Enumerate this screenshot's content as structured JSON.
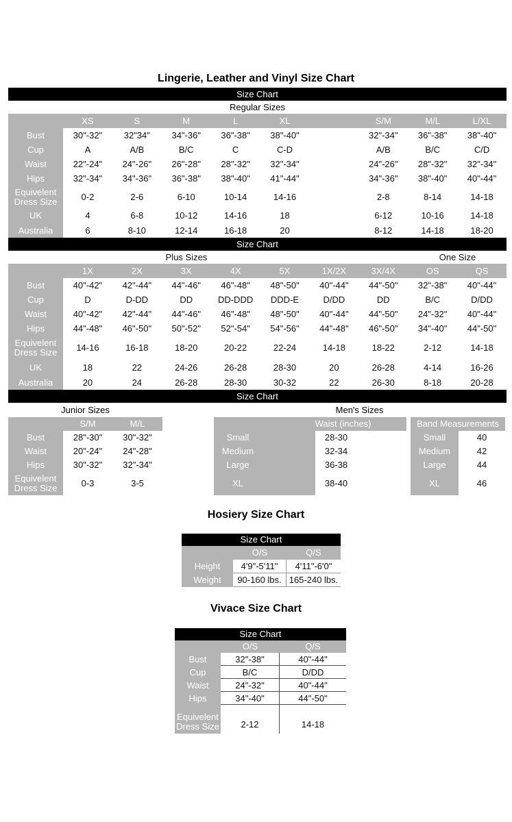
{
  "page": {
    "title": "Lingerie, Leather and Vinyl Size Chart"
  },
  "bars": {
    "size_chart": "Size Chart"
  },
  "regular": {
    "subtitle": "Regular Sizes",
    "columns": [
      "XS",
      "S",
      "M",
      "L",
      "XL",
      "",
      "S/M",
      "M/L",
      "L/XL"
    ],
    "rows": [
      {
        "label": "Bust",
        "values": [
          "30\"-32\"",
          "32\"34\"",
          "34\"-36\"",
          "36\"-38\"",
          "38\"-40\"",
          "",
          "32\"-34\"",
          "36\"-38\"",
          "38\"-40\""
        ]
      },
      {
        "label": "Cup",
        "values": [
          "A",
          "A/B",
          "B/C",
          "C",
          "C-D",
          "",
          "A/B",
          "B/C",
          "C/D"
        ]
      },
      {
        "label": "Waist",
        "values": [
          "22\"-24\"",
          "24\"-26\"",
          "26\"-28\"",
          "28\"-32\"",
          "32\"-34\"",
          "",
          "24\"-26\"",
          "28\"-32\"",
          "32\"-34\""
        ]
      },
      {
        "label": "Hips",
        "values": [
          "32\"-34\"",
          "34\"-36\"",
          "36\"-38\"",
          "38\"-40\"",
          "41\"-44\"",
          "",
          "34\"-36\"",
          "38\"-40\"",
          "40\"-44\""
        ]
      },
      {
        "label": "Equivelent Dress Size",
        "values": [
          "0-2",
          "2-6",
          "6-10",
          "10-14",
          "14-16",
          "",
          "2-8",
          "8-14",
          "14-18"
        ]
      },
      {
        "label": "UK",
        "values": [
          "4",
          "6-8",
          "10-12",
          "14-16",
          "18",
          "",
          "6-12",
          "10-16",
          "14-18"
        ]
      },
      {
        "label": "Australia",
        "values": [
          "6",
          "8-10",
          "12-14",
          "16-18",
          "20",
          "",
          "8-12",
          "14-18",
          "18-20"
        ]
      }
    ]
  },
  "plus": {
    "subtitle_left": "Plus Sizes",
    "subtitle_right": "One Size",
    "columns": [
      "1X",
      "2X",
      "3X",
      "4X",
      "5X",
      "1X/2X",
      "3X/4X",
      "OS",
      "QS"
    ],
    "rows": [
      {
        "label": "Bust",
        "values": [
          "40\"-42\"",
          "42\"-44\"",
          "44\"-46\"",
          "46\"-48\"",
          "48\"-50\"",
          "40\"-44\"",
          "44\"-50\"",
          "32\"-38\"",
          "40\"-44\""
        ]
      },
      {
        "label": "Cup",
        "values": [
          "D",
          "D-DD",
          "DD",
          "DD-DDD",
          "DDD-E",
          "D/DD",
          "DD",
          "B/C",
          "D/DD"
        ]
      },
      {
        "label": "Waist",
        "values": [
          "40\"-42\"",
          "42\"-44\"",
          "44\"-46\"",
          "46\"-48\"",
          "48\"-50\"",
          "40\"-44\"",
          "44\"-50\"",
          "24\"-32\"",
          "40\"-44\""
        ]
      },
      {
        "label": "Hips",
        "values": [
          "44\"-48\"",
          "46\"-50\"",
          "50\"-52\"",
          "52\"-54\"",
          "54\"-56\"",
          "44\"-48\"",
          "46\"-50\"",
          "34\"-40\"",
          "44\"-50\""
        ]
      },
      {
        "label": "Equivelent Dress Size",
        "values": [
          "14-16",
          "16-18",
          "18-20",
          "20-22",
          "22-24",
          "14-18",
          "18-22",
          "2-12",
          "14-18"
        ]
      },
      {
        "label": "UK",
        "values": [
          "18",
          "22",
          "24-26",
          "26-28",
          "28-30",
          "20",
          "26-28",
          "4-14",
          "16-26"
        ]
      },
      {
        "label": "Australia",
        "values": [
          "20",
          "24",
          "26-28",
          "28-30",
          "30-32",
          "22",
          "26-30",
          "8-18",
          "20-28"
        ]
      }
    ]
  },
  "junior": {
    "subtitle": "Junior Sizes",
    "columns": [
      "S/M",
      "M/L"
    ],
    "rows": [
      {
        "label": "Bust",
        "values": [
          "28\"-30\"",
          "30\"-32\""
        ]
      },
      {
        "label": "Waist",
        "values": [
          "20\"-24\"",
          "24\"-28\""
        ]
      },
      {
        "label": "Hips",
        "values": [
          "30\"-32\"",
          "32\"-34\""
        ]
      },
      {
        "label": "Equivelent Dress Size",
        "values": [
          "0-3",
          "3-5"
        ]
      }
    ]
  },
  "mens": {
    "subtitle": "Men's Sizes",
    "waist_header": "Waist (inches)",
    "band_header": "Band Measurements",
    "rows": [
      {
        "size": "Small",
        "waist": "28-30",
        "band_size": "Small",
        "band": "40"
      },
      {
        "size": "Medium",
        "waist": "32-34",
        "band_size": "Medium",
        "band": "42"
      },
      {
        "size": "Large",
        "waist": "36-38",
        "band_size": "Large",
        "band": "44"
      },
      {
        "size": "XL",
        "waist": "38-40",
        "band_size": "XL",
        "band": "46"
      }
    ]
  },
  "hosiery": {
    "title": "Hosiery Size Chart",
    "bar": "Size Chart",
    "columns": [
      "O/S",
      "Q/S"
    ],
    "rows": [
      {
        "label": "Height",
        "values": [
          "4'9\"-5'11\"",
          "4'11\"-6'0\""
        ]
      },
      {
        "label": "Weight",
        "values": [
          "90-160 lbs.",
          "165-240 lbs."
        ]
      }
    ]
  },
  "vivace": {
    "title": "Vivace Size Chart",
    "bar": "Size Chart",
    "columns": [
      "O/S",
      "Q/S"
    ],
    "rows": [
      {
        "label": "Bust",
        "values": [
          "32\"-38\"",
          "40\"-44\""
        ]
      },
      {
        "label": "Cup",
        "values": [
          "B/C",
          "D/DD"
        ]
      },
      {
        "label": "Waist",
        "values": [
          "24\"-32\"",
          "40\"-44\""
        ]
      },
      {
        "label": "Hips",
        "values": [
          "34\"-40\"",
          "44\"-50\""
        ]
      },
      {
        "label": "Equivelent Dress Size",
        "values": [
          "2-12",
          "14-18"
        ]
      }
    ]
  }
}
